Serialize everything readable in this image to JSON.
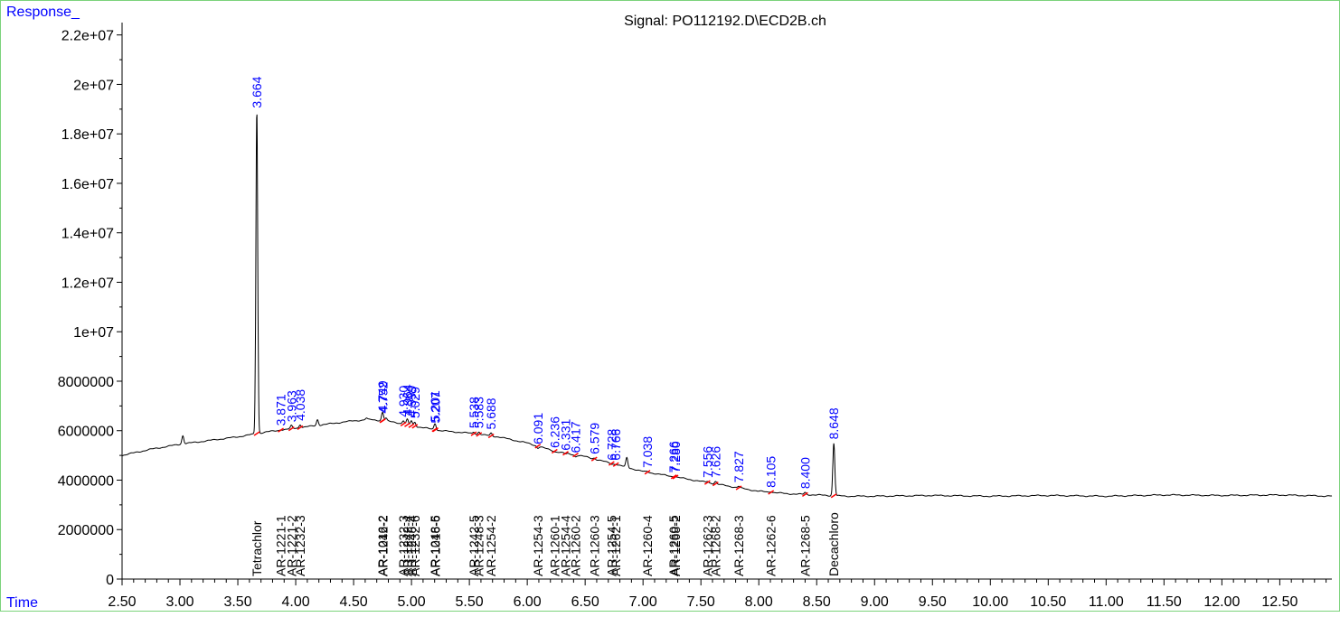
{
  "header": {
    "y_axis_title": "Response_",
    "signal_title": "Signal: PO112192.D\\ECD2B.ch",
    "x_axis_title": "Time"
  },
  "chart_data": {
    "type": "line",
    "title": "Signal: PO112192.D\\ECD2B.ch",
    "ylabel": "Response_",
    "xlabel": "Time",
    "xlim": [
      2.5,
      12.95
    ],
    "ylim": [
      0,
      22500000
    ],
    "x_ticks": [
      2.5,
      3.0,
      3.5,
      4.0,
      4.5,
      5.0,
      5.5,
      6.0,
      6.5,
      7.0,
      7.5,
      8.0,
      8.5,
      9.0,
      9.5,
      10.0,
      10.5,
      11.0,
      11.5,
      12.0,
      12.5
    ],
    "x_tick_labels": [
      "2.50",
      "3.00",
      "3.50",
      "4.00",
      "4.50",
      "5.00",
      "5.50",
      "6.00",
      "6.50",
      "7.00",
      "7.50",
      "8.00",
      "8.50",
      "9.00",
      "9.50",
      "10.00",
      "10.50",
      "11.00",
      "11.50",
      "12.00",
      "12.50"
    ],
    "y_ticks": [
      0,
      2000000,
      4000000,
      6000000,
      8000000,
      10000000,
      12000000,
      14000000,
      16000000,
      18000000,
      20000000,
      22000000
    ],
    "y_tick_labels": [
      "0",
      "2000000",
      "4000000",
      "6000000",
      "8000000",
      "1e+07",
      "1.2e+07",
      "1.4e+07",
      "1.6e+07",
      "1.8e+07",
      "2e+07",
      "2.2e+07"
    ],
    "baseline": [
      [
        2.5,
        5000000
      ],
      [
        2.75,
        5250000
      ],
      [
        3.0,
        5450000
      ],
      [
        3.25,
        5600000
      ],
      [
        3.5,
        5750000
      ],
      [
        3.75,
        5950000
      ],
      [
        4.0,
        6100000
      ],
      [
        4.25,
        6250000
      ],
      [
        4.5,
        6400000
      ],
      [
        4.65,
        6450000
      ],
      [
        4.85,
        6350000
      ],
      [
        5.0,
        6200000
      ],
      [
        5.25,
        6000000
      ],
      [
        5.5,
        5900000
      ],
      [
        5.75,
        5750000
      ],
      [
        6.0,
        5500000
      ],
      [
        6.25,
        5150000
      ],
      [
        6.5,
        4950000
      ],
      [
        6.75,
        4650000
      ],
      [
        7.0,
        4350000
      ],
      [
        7.25,
        4150000
      ],
      [
        7.5,
        3950000
      ],
      [
        7.75,
        3750000
      ],
      [
        8.0,
        3550000
      ],
      [
        8.25,
        3450000
      ],
      [
        8.5,
        3400000
      ],
      [
        8.75,
        3350000
      ],
      [
        9.0,
        3350000
      ],
      [
        9.5,
        3380000
      ],
      [
        10.0,
        3350000
      ],
      [
        10.5,
        3380000
      ],
      [
        11.0,
        3350000
      ],
      [
        11.5,
        3400000
      ],
      [
        12.0,
        3380000
      ],
      [
        12.5,
        3400000
      ],
      [
        12.95,
        3350000
      ]
    ],
    "peaks": [
      {
        "rt": 3.025,
        "height": 5800000,
        "labeled": false
      },
      {
        "rt": 3.664,
        "height": 18900000,
        "labeled": true
      },
      {
        "rt": 3.871,
        "height": 6050000,
        "labeled": true
      },
      {
        "rt": 3.963,
        "height": 6200000,
        "labeled": true
      },
      {
        "rt": 4.038,
        "height": 6250000,
        "labeled": true
      },
      {
        "rt": 4.188,
        "height": 6450000,
        "labeled": false
      },
      {
        "rt": 4.61,
        "height": 6500000,
        "labeled": false
      },
      {
        "rt": 4.749,
        "height": 6600000,
        "labeled": true
      },
      {
        "rt": 4.752,
        "height": 6550000,
        "labeled": true
      },
      {
        "rt": 4.78,
        "height": 6500000,
        "labeled": false
      },
      {
        "rt": 4.93,
        "height": 6400000,
        "labeled": true
      },
      {
        "rt": 4.964,
        "height": 6450000,
        "labeled": true
      },
      {
        "rt": 4.999,
        "height": 6400000,
        "labeled": true
      },
      {
        "rt": 5.029,
        "height": 6350000,
        "labeled": true
      },
      {
        "rt": 5.201,
        "height": 6200000,
        "labeled": true
      },
      {
        "rt": 5.207,
        "height": 6150000,
        "labeled": true
      },
      {
        "rt": 5.538,
        "height": 5950000,
        "labeled": true
      },
      {
        "rt": 5.583,
        "height": 5950000,
        "labeled": true
      },
      {
        "rt": 5.688,
        "height": 5900000,
        "labeled": true
      },
      {
        "rt": 6.091,
        "height": 5300000,
        "labeled": true
      },
      {
        "rt": 6.236,
        "height": 5150000,
        "labeled": true
      },
      {
        "rt": 6.331,
        "height": 5050000,
        "labeled": true
      },
      {
        "rt": 6.417,
        "height": 4950000,
        "labeled": true
      },
      {
        "rt": 6.579,
        "height": 4900000,
        "labeled": true
      },
      {
        "rt": 6.728,
        "height": 4650000,
        "labeled": true
      },
      {
        "rt": 6.766,
        "height": 4650000,
        "labeled": true
      },
      {
        "rt": 6.86,
        "height": 4900000,
        "labeled": false
      },
      {
        "rt": 7.038,
        "height": 4350000,
        "labeled": true
      },
      {
        "rt": 7.266,
        "height": 4150000,
        "labeled": true
      },
      {
        "rt": 7.28,
        "height": 4150000,
        "labeled": true
      },
      {
        "rt": 7.556,
        "height": 3950000,
        "labeled": true
      },
      {
        "rt": 7.626,
        "height": 3950000,
        "labeled": true
      },
      {
        "rt": 7.827,
        "height": 3750000,
        "labeled": true
      },
      {
        "rt": 8.105,
        "height": 3550000,
        "labeled": true
      },
      {
        "rt": 8.4,
        "height": 3500000,
        "labeled": true
      },
      {
        "rt": 8.648,
        "height": 5500000,
        "labeled": true
      }
    ],
    "peak_labels": [
      {
        "text": "3.664",
        "rt": 3.664
      },
      {
        "text": "3.871",
        "rt": 3.871
      },
      {
        "text": "3.963",
        "rt": 3.963
      },
      {
        "text": "4.038",
        "rt": 4.038
      },
      {
        "text": "4.749",
        "rt": 4.749
      },
      {
        "text": "4.752",
        "rt": 4.752
      },
      {
        "text": "4.930",
        "rt": 4.93
      },
      {
        "text": "4.964",
        "rt": 4.964
      },
      {
        "text": "4.999",
        "rt": 4.999
      },
      {
        "text": "5.029",
        "rt": 5.029
      },
      {
        "text": "5.201",
        "rt": 5.201
      },
      {
        "text": "5.207",
        "rt": 5.207
      },
      {
        "text": "5.538",
        "rt": 5.538
      },
      {
        "text": "5.583",
        "rt": 5.583
      },
      {
        "text": "5.688",
        "rt": 5.688
      },
      {
        "text": "6.091",
        "rt": 6.091
      },
      {
        "text": "6.236",
        "rt": 6.236
      },
      {
        "text": "6.331",
        "rt": 6.331
      },
      {
        "text": "6.417",
        "rt": 6.417
      },
      {
        "text": "6.579",
        "rt": 6.579
      },
      {
        "text": "6.728",
        "rt": 6.728
      },
      {
        "text": "6.766",
        "rt": 6.766
      },
      {
        "text": "7.038",
        "rt": 7.038
      },
      {
        "text": "7.266",
        "rt": 7.266
      },
      {
        "text": "7.280",
        "rt": 7.28
      },
      {
        "text": "7.556",
        "rt": 7.556
      },
      {
        "text": "7.626",
        "rt": 7.626
      },
      {
        "text": "7.827",
        "rt": 7.827
      },
      {
        "text": "8.105",
        "rt": 8.105
      },
      {
        "text": "8.400",
        "rt": 8.4
      },
      {
        "text": "8.648",
        "rt": 8.648
      }
    ],
    "compound_labels": [
      {
        "text": "Tetrachlor",
        "rt": 3.664
      },
      {
        "text": "AR-1221-1",
        "rt": 3.871
      },
      {
        "text": "AR-1221-2",
        "rt": 3.963
      },
      {
        "text": "AR-1232-3",
        "rt": 4.038
      },
      {
        "text": "AR-1016-2",
        "rt": 4.749
      },
      {
        "text": "AR-1242-2",
        "rt": 4.752
      },
      {
        "text": "AR-1232-3",
        "rt": 4.93
      },
      {
        "text": "AR-1242-4",
        "rt": 4.964
      },
      {
        "text": "AR-1248-4",
        "rt": 4.999
      },
      {
        "text": "AR-1232-6",
        "rt": 5.029
      },
      {
        "text": "AR-1248-5",
        "rt": 5.201
      },
      {
        "text": "AR-1016-6",
        "rt": 5.207
      },
      {
        "text": "AR-1242-5",
        "rt": 5.538
      },
      {
        "text": "AR-1248-3",
        "rt": 5.583
      },
      {
        "text": "AR-1254-2",
        "rt": 5.688
      },
      {
        "text": "AR-1254-3",
        "rt": 6.091
      },
      {
        "text": "AR-1260-1",
        "rt": 6.236
      },
      {
        "text": "AR-1254-4",
        "rt": 6.331
      },
      {
        "text": "AR-1260-2",
        "rt": 6.417
      },
      {
        "text": "AR-1260-3",
        "rt": 6.579
      },
      {
        "text": "AR-1254-5",
        "rt": 6.728
      },
      {
        "text": "AR-1262-1",
        "rt": 6.766
      },
      {
        "text": "AR-1260-4",
        "rt": 7.038
      },
      {
        "text": "AR-1260-5",
        "rt": 7.266
      },
      {
        "text": "AR-1268-2",
        "rt": 7.28
      },
      {
        "text": "AR-1262-3",
        "rt": 7.556
      },
      {
        "text": "AR-1268-2",
        "rt": 7.626
      },
      {
        "text": "AR-1268-3",
        "rt": 7.827
      },
      {
        "text": "AR-1262-6",
        "rt": 8.105
      },
      {
        "text": "AR-1268-5",
        "rt": 8.4
      },
      {
        "text": "Decachloro",
        "rt": 8.648
      }
    ],
    "grid": false,
    "colors": {
      "trace": "#000000",
      "peak_label": "#0000ff",
      "header_label": "#0000ff",
      "integration_marker": "#ff0000",
      "frame": "#7bd37b"
    }
  }
}
